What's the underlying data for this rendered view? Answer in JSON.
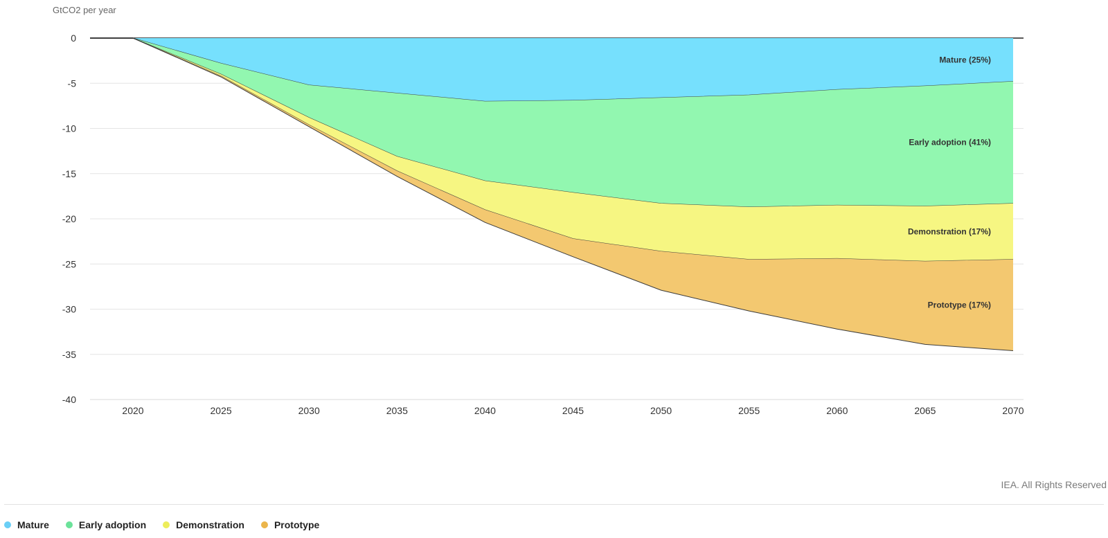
{
  "chart_data": {
    "type": "area",
    "stacked": true,
    "ylabel": "GtCO2 per year",
    "ylim": [
      -40,
      0
    ],
    "yticks": [
      0,
      -5,
      -10,
      -15,
      -20,
      -25,
      -30,
      -35,
      -40
    ],
    "xlim": [
      2015,
      2071
    ],
    "xticks": [
      2020,
      2025,
      2030,
      2035,
      2040,
      2045,
      2050,
      2055,
      2060,
      2065,
      2070
    ],
    "x": [
      2020,
      2025,
      2030,
      2035,
      2040,
      2045,
      2050,
      2055,
      2060,
      2065,
      2070
    ],
    "series": [
      {
        "name": "Mature",
        "label": "Mature (25%)",
        "color": "#76E0FD",
        "values": [
          0,
          -2.8,
          -5.2,
          -6.1,
          -7.0,
          -6.9,
          -6.6,
          -6.3,
          -5.7,
          -5.3,
          -4.8
        ]
      },
      {
        "name": "Early adoption",
        "label": "Early adoption (41%)",
        "color": "#92F7B0",
        "values": [
          0,
          -1.2,
          -3.6,
          -7.0,
          -8.8,
          -10.2,
          -11.7,
          -12.4,
          -12.8,
          -13.3,
          -13.5
        ]
      },
      {
        "name": "Demonstration",
        "label": "Demonstration (17%)",
        "color": "#F6F682",
        "values": [
          0,
          -0.2,
          -0.8,
          -1.6,
          -3.2,
          -5.1,
          -5.3,
          -5.8,
          -5.9,
          -6.1,
          -6.2
        ]
      },
      {
        "name": "Prototype",
        "label": "Prototype (17%)",
        "color": "#F3C870",
        "values": [
          0,
          -0.1,
          -0.2,
          -0.6,
          -1.4,
          -2.0,
          -4.3,
          -5.7,
          -7.8,
          -9.2,
          -10.1
        ]
      }
    ],
    "legend": "bottom-left"
  },
  "credit": "IEA. All Rights Reserved",
  "legend_items": [
    {
      "label": "Mature",
      "color": "#6ACFF6"
    },
    {
      "label": "Early adoption",
      "color": "#6CE29A"
    },
    {
      "label": "Demonstration",
      "color": "#EDED5A"
    },
    {
      "label": "Prototype",
      "color": "#EBB54B"
    }
  ]
}
